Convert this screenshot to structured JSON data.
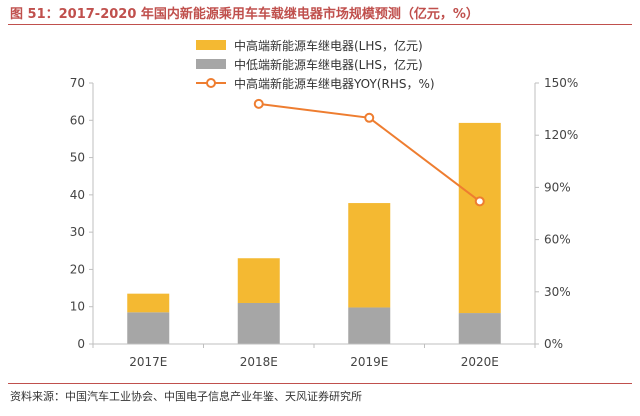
{
  "title": "图 51：2017-2020 年国内新能源乘用车车载继电器市场规模预测（亿元，%）",
  "source": "资料来源：中国汽车工业协会、中国电子信息产业年鉴、天风证券研究所",
  "colors": {
    "title": "#c0504d",
    "high_end": "#f4b932",
    "mid_low": "#a6a6a6",
    "yoy_line": "#ee7d30",
    "axis": "#bfbfbf"
  },
  "chart_data": {
    "type": "bar",
    "stacked": true,
    "categories": [
      "2017E",
      "2018E",
      "2019E",
      "2020E"
    ],
    "series": [
      {
        "name": "中低端新能源车继电器(LHS，亿元)",
        "type": "bar",
        "axis": "left",
        "values": [
          8.5,
          11,
          9.8,
          8.3
        ]
      },
      {
        "name": "中高端新能源车继电器(LHS，亿元)",
        "type": "bar",
        "axis": "left",
        "values": [
          5,
          12,
          28,
          51
        ]
      },
      {
        "name": "中高端新能源车继电器YOY(RHS，%)",
        "type": "line",
        "axis": "right",
        "values": [
          null,
          138,
          130,
          82
        ]
      }
    ],
    "legend_order": [
      1,
      0,
      2
    ],
    "legend_position": "top-center",
    "y_left": {
      "min": 0,
      "max": 70,
      "ticks": [
        0,
        10,
        20,
        30,
        40,
        50,
        60,
        70
      ]
    },
    "y_right": {
      "min": 0,
      "max": 150,
      "ticks": [
        "0%",
        "30%",
        "60%",
        "90%",
        "120%",
        "150%"
      ]
    },
    "grid": false
  }
}
